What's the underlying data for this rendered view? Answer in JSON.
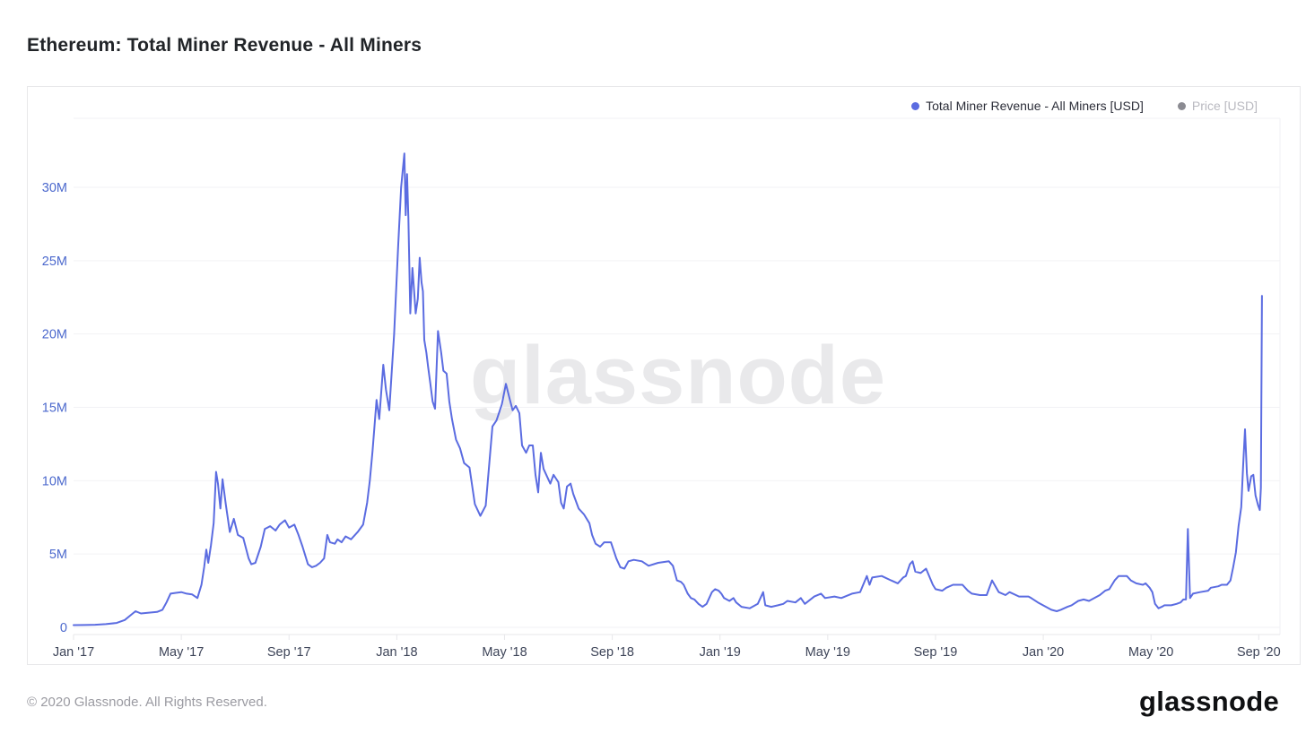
{
  "page": {
    "title": "Ethereum: Total Miner Revenue - All Miners",
    "footer": {
      "copyright": "© 2020 Glassnode. All Rights Reserved.",
      "brand": "glassnode"
    }
  },
  "watermark": "glassnode",
  "legend": {
    "position": "top-right",
    "items": [
      {
        "label": "Total Miner Revenue - All Miners [USD]",
        "color": "#5b6ce1",
        "active": true
      },
      {
        "label": "Price [USD]",
        "color": "#8b8b92",
        "active": false
      }
    ]
  },
  "chart_data": {
    "type": "line",
    "title": "Ethereum: Total Miner Revenue - All Miners",
    "grid": "horizontal",
    "legend_position": "top-right",
    "x_axis": {
      "unit": "months since Jan 2017",
      "range": [
        0,
        44.8
      ],
      "ticks": [
        {
          "month": 0,
          "label": "Jan '17"
        },
        {
          "month": 4,
          "label": "May '17"
        },
        {
          "month": 8,
          "label": "Sep '17"
        },
        {
          "month": 12,
          "label": "Jan '18"
        },
        {
          "month": 16,
          "label": "May '18"
        },
        {
          "month": 20,
          "label": "Sep '18"
        },
        {
          "month": 24,
          "label": "Jan '19"
        },
        {
          "month": 28,
          "label": "May '19"
        },
        {
          "month": 32,
          "label": "Sep '19"
        },
        {
          "month": 36,
          "label": "Jan '20"
        },
        {
          "month": 40,
          "label": "May '20"
        },
        {
          "month": 44,
          "label": "Sep '20"
        }
      ]
    },
    "y_axis": {
      "unit": "USD (millions)",
      "range": [
        0,
        34.7
      ],
      "ticks": [
        {
          "value": 0,
          "label": "0"
        },
        {
          "value": 5,
          "label": "5M"
        },
        {
          "value": 10,
          "label": "10M"
        },
        {
          "value": 15,
          "label": "15M"
        },
        {
          "value": 20,
          "label": "20M"
        },
        {
          "value": 25,
          "label": "25M"
        },
        {
          "value": 30,
          "label": "30M"
        }
      ]
    },
    "series": [
      {
        "name": "Total Miner Revenue - All Miners [USD]",
        "color": "#5b6ce1",
        "points": [
          [
            0,
            0.15
          ],
          [
            0.4,
            0.16
          ],
          [
            0.8,
            0.18
          ],
          [
            1.2,
            0.22
          ],
          [
            1.6,
            0.3
          ],
          [
            1.9,
            0.5
          ],
          [
            2.1,
            0.8
          ],
          [
            2.3,
            1.1
          ],
          [
            2.5,
            0.95
          ],
          [
            2.8,
            1.0
          ],
          [
            3.1,
            1.05
          ],
          [
            3.3,
            1.2
          ],
          [
            3.45,
            1.7
          ],
          [
            3.6,
            2.3
          ],
          [
            3.8,
            2.35
          ],
          [
            4.0,
            2.4
          ],
          [
            4.2,
            2.3
          ],
          [
            4.4,
            2.25
          ],
          [
            4.6,
            2.0
          ],
          [
            4.75,
            2.9
          ],
          [
            4.85,
            4.1
          ],
          [
            4.93,
            5.3
          ],
          [
            5.0,
            4.4
          ],
          [
            5.1,
            5.6
          ],
          [
            5.2,
            7.1
          ],
          [
            5.29,
            10.6
          ],
          [
            5.36,
            9.8
          ],
          [
            5.45,
            8.1
          ],
          [
            5.53,
            10.1
          ],
          [
            5.65,
            8.4
          ],
          [
            5.8,
            6.5
          ],
          [
            5.95,
            7.4
          ],
          [
            6.1,
            6.3
          ],
          [
            6.3,
            6.1
          ],
          [
            6.5,
            4.7
          ],
          [
            6.6,
            4.3
          ],
          [
            6.75,
            4.4
          ],
          [
            6.95,
            5.5
          ],
          [
            7.1,
            6.7
          ],
          [
            7.3,
            6.9
          ],
          [
            7.5,
            6.6
          ],
          [
            7.65,
            7.0
          ],
          [
            7.85,
            7.3
          ],
          [
            8.0,
            6.8
          ],
          [
            8.2,
            7.0
          ],
          [
            8.35,
            6.3
          ],
          [
            8.5,
            5.5
          ],
          [
            8.7,
            4.3
          ],
          [
            8.85,
            4.1
          ],
          [
            9.0,
            4.2
          ],
          [
            9.15,
            4.4
          ],
          [
            9.3,
            4.7
          ],
          [
            9.42,
            6.3
          ],
          [
            9.52,
            5.8
          ],
          [
            9.7,
            5.7
          ],
          [
            9.8,
            6.0
          ],
          [
            9.95,
            5.8
          ],
          [
            10.1,
            6.2
          ],
          [
            10.3,
            6.0
          ],
          [
            10.55,
            6.5
          ],
          [
            10.75,
            7.0
          ],
          [
            10.9,
            8.5
          ],
          [
            11.0,
            10.0
          ],
          [
            11.1,
            12.0
          ],
          [
            11.25,
            15.5
          ],
          [
            11.35,
            14.2
          ],
          [
            11.5,
            17.9
          ],
          [
            11.6,
            16.2
          ],
          [
            11.72,
            14.8
          ],
          [
            11.9,
            20.0
          ],
          [
            12.05,
            26.0
          ],
          [
            12.16,
            30.0
          ],
          [
            12.28,
            32.3
          ],
          [
            12.33,
            28.1
          ],
          [
            12.38,
            30.9
          ],
          [
            12.43,
            27.9
          ],
          [
            12.5,
            21.4
          ],
          [
            12.58,
            24.5
          ],
          [
            12.64,
            23.0
          ],
          [
            12.7,
            21.4
          ],
          [
            12.78,
            22.4
          ],
          [
            12.85,
            25.2
          ],
          [
            12.92,
            23.5
          ],
          [
            12.97,
            22.9
          ],
          [
            13.02,
            19.6
          ],
          [
            13.1,
            18.7
          ],
          [
            13.16,
            17.8
          ],
          [
            13.24,
            16.7
          ],
          [
            13.33,
            15.4
          ],
          [
            13.42,
            14.9
          ],
          [
            13.53,
            20.2
          ],
          [
            13.65,
            18.7
          ],
          [
            13.73,
            17.5
          ],
          [
            13.85,
            17.3
          ],
          [
            13.95,
            15.4
          ],
          [
            14.05,
            14.2
          ],
          [
            14.2,
            12.8
          ],
          [
            14.35,
            12.2
          ],
          [
            14.5,
            11.2
          ],
          [
            14.7,
            10.9
          ],
          [
            14.9,
            8.4
          ],
          [
            15.1,
            7.6
          ],
          [
            15.3,
            8.3
          ],
          [
            15.55,
            13.7
          ],
          [
            15.7,
            14.1
          ],
          [
            15.9,
            15.2
          ],
          [
            16.05,
            16.6
          ],
          [
            16.2,
            15.5
          ],
          [
            16.3,
            14.8
          ],
          [
            16.42,
            15.1
          ],
          [
            16.55,
            14.6
          ],
          [
            16.65,
            12.4
          ],
          [
            16.8,
            11.9
          ],
          [
            16.92,
            12.4
          ],
          [
            17.05,
            12.4
          ],
          [
            17.15,
            10.4
          ],
          [
            17.25,
            9.2
          ],
          [
            17.35,
            11.9
          ],
          [
            17.45,
            10.8
          ],
          [
            17.6,
            10.2
          ],
          [
            17.7,
            9.8
          ],
          [
            17.82,
            10.4
          ],
          [
            18.0,
            9.9
          ],
          [
            18.1,
            8.5
          ],
          [
            18.2,
            8.1
          ],
          [
            18.32,
            9.6
          ],
          [
            18.45,
            9.8
          ],
          [
            18.55,
            9.1
          ],
          [
            18.75,
            8.1
          ],
          [
            18.95,
            7.7
          ],
          [
            19.15,
            7.1
          ],
          [
            19.25,
            6.3
          ],
          [
            19.38,
            5.7
          ],
          [
            19.55,
            5.5
          ],
          [
            19.7,
            5.8
          ],
          [
            19.95,
            5.8
          ],
          [
            20.15,
            4.7
          ],
          [
            20.3,
            4.1
          ],
          [
            20.45,
            4.0
          ],
          [
            20.6,
            4.5
          ],
          [
            20.8,
            4.6
          ],
          [
            21.1,
            4.5
          ],
          [
            21.35,
            4.2
          ],
          [
            21.7,
            4.4
          ],
          [
            22.1,
            4.5
          ],
          [
            22.25,
            4.2
          ],
          [
            22.4,
            3.2
          ],
          [
            22.55,
            3.1
          ],
          [
            22.65,
            2.9
          ],
          [
            22.8,
            2.3
          ],
          [
            22.92,
            2.0
          ],
          [
            23.05,
            1.9
          ],
          [
            23.2,
            1.6
          ],
          [
            23.35,
            1.4
          ],
          [
            23.5,
            1.6
          ],
          [
            23.7,
            2.4
          ],
          [
            23.82,
            2.6
          ],
          [
            23.95,
            2.5
          ],
          [
            24.05,
            2.3
          ],
          [
            24.15,
            2.0
          ],
          [
            24.35,
            1.8
          ],
          [
            24.5,
            2.0
          ],
          [
            24.6,
            1.7
          ],
          [
            24.8,
            1.4
          ],
          [
            25.1,
            1.3
          ],
          [
            25.4,
            1.6
          ],
          [
            25.6,
            2.4
          ],
          [
            25.68,
            1.5
          ],
          [
            25.9,
            1.4
          ],
          [
            26.15,
            1.5
          ],
          [
            26.35,
            1.6
          ],
          [
            26.5,
            1.8
          ],
          [
            26.8,
            1.7
          ],
          [
            27.0,
            2.0
          ],
          [
            27.15,
            1.6
          ],
          [
            27.5,
            2.1
          ],
          [
            27.75,
            2.3
          ],
          [
            27.9,
            2.0
          ],
          [
            28.25,
            2.1
          ],
          [
            28.5,
            2.0
          ],
          [
            28.9,
            2.3
          ],
          [
            29.2,
            2.4
          ],
          [
            29.45,
            3.5
          ],
          [
            29.55,
            2.9
          ],
          [
            29.65,
            3.4
          ],
          [
            30.0,
            3.5
          ],
          [
            30.35,
            3.2
          ],
          [
            30.6,
            3.0
          ],
          [
            30.8,
            3.4
          ],
          [
            30.9,
            3.5
          ],
          [
            31.05,
            4.3
          ],
          [
            31.15,
            4.5
          ],
          [
            31.25,
            3.8
          ],
          [
            31.45,
            3.7
          ],
          [
            31.65,
            4.0
          ],
          [
            31.9,
            2.9
          ],
          [
            32.0,
            2.6
          ],
          [
            32.25,
            2.5
          ],
          [
            32.4,
            2.7
          ],
          [
            32.65,
            2.9
          ],
          [
            33.0,
            2.9
          ],
          [
            33.2,
            2.5
          ],
          [
            33.35,
            2.3
          ],
          [
            33.65,
            2.2
          ],
          [
            33.9,
            2.2
          ],
          [
            34.1,
            3.2
          ],
          [
            34.35,
            2.4
          ],
          [
            34.6,
            2.2
          ],
          [
            34.75,
            2.4
          ],
          [
            35.1,
            2.1
          ],
          [
            35.45,
            2.1
          ],
          [
            35.55,
            2.0
          ],
          [
            35.8,
            1.7
          ],
          [
            36.1,
            1.4
          ],
          [
            36.3,
            1.2
          ],
          [
            36.5,
            1.1
          ],
          [
            36.65,
            1.2
          ],
          [
            36.9,
            1.4
          ],
          [
            37.05,
            1.5
          ],
          [
            37.3,
            1.8
          ],
          [
            37.5,
            1.9
          ],
          [
            37.7,
            1.8
          ],
          [
            37.9,
            2.0
          ],
          [
            38.1,
            2.2
          ],
          [
            38.3,
            2.5
          ],
          [
            38.45,
            2.6
          ],
          [
            38.65,
            3.2
          ],
          [
            38.8,
            3.5
          ],
          [
            38.9,
            3.5
          ],
          [
            39.1,
            3.5
          ],
          [
            39.25,
            3.2
          ],
          [
            39.45,
            3.0
          ],
          [
            39.7,
            2.9
          ],
          [
            39.8,
            3.0
          ],
          [
            39.95,
            2.7
          ],
          [
            40.05,
            2.4
          ],
          [
            40.15,
            1.6
          ],
          [
            40.28,
            1.3
          ],
          [
            40.4,
            1.4
          ],
          [
            40.5,
            1.5
          ],
          [
            40.75,
            1.5
          ],
          [
            40.95,
            1.6
          ],
          [
            41.1,
            1.7
          ],
          [
            41.2,
            1.9
          ],
          [
            41.3,
            1.9
          ],
          [
            41.37,
            6.7
          ],
          [
            41.45,
            2.0
          ],
          [
            41.56,
            2.3
          ],
          [
            41.82,
            2.4
          ],
          [
            42.12,
            2.5
          ],
          [
            42.22,
            2.7
          ],
          [
            42.5,
            2.8
          ],
          [
            42.62,
            2.9
          ],
          [
            42.82,
            2.9
          ],
          [
            42.95,
            3.2
          ],
          [
            43.05,
            4.1
          ],
          [
            43.15,
            5.1
          ],
          [
            43.25,
            6.9
          ],
          [
            43.35,
            8.2
          ],
          [
            43.42,
            11.0
          ],
          [
            43.49,
            13.5
          ],
          [
            43.56,
            10.5
          ],
          [
            43.62,
            9.3
          ],
          [
            43.72,
            10.3
          ],
          [
            43.8,
            10.4
          ],
          [
            43.88,
            9.0
          ],
          [
            43.98,
            8.3
          ],
          [
            44.04,
            8.0
          ],
          [
            44.08,
            9.5
          ],
          [
            44.12,
            22.6
          ]
        ]
      }
    ],
    "inactive_series": [
      {
        "name": "Price [USD]"
      }
    ],
    "annotations": {
      "watermark": "glassnode"
    }
  }
}
